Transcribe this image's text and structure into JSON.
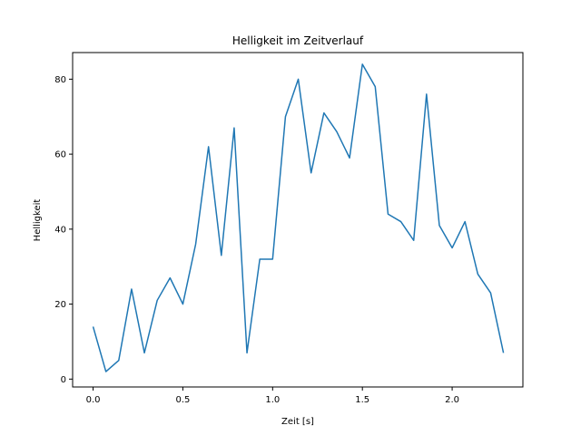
{
  "chart_data": {
    "type": "line",
    "title": "Helligkeit im Zeitverlauf",
    "xlabel": "Zeit [s]",
    "ylabel": "Helligkeit",
    "xlim": [
      -0.114,
      2.394
    ],
    "ylim": [
      -2.1,
      87.1
    ],
    "xticks": [
      0.0,
      0.5,
      1.0,
      1.5,
      2.0
    ],
    "xtick_labels": [
      "0.0",
      "0.5",
      "1.0",
      "1.5",
      "2.0"
    ],
    "yticks": [
      0,
      20,
      40,
      60,
      80
    ],
    "ytick_labels": [
      "0",
      "20",
      "40",
      "60",
      "80"
    ],
    "grid": false,
    "series": [
      {
        "color": "#1f77b4",
        "x": [
          0.0,
          0.0714,
          0.1429,
          0.2143,
          0.2857,
          0.3571,
          0.4286,
          0.5,
          0.5714,
          0.6429,
          0.7143,
          0.7857,
          0.8571,
          0.9286,
          1.0,
          1.0714,
          1.1429,
          1.2143,
          1.2857,
          1.3571,
          1.4286,
          1.5,
          1.5714,
          1.6429,
          1.7143,
          1.7857,
          1.8571,
          1.9286,
          2.0,
          2.0714,
          2.1429,
          2.2143,
          2.2857
        ],
        "y": [
          14,
          2,
          5,
          24,
          7,
          21,
          27,
          20,
          36,
          62,
          33,
          67,
          7,
          32,
          32,
          70,
          80,
          55,
          71,
          66,
          59,
          84,
          78,
          44,
          42,
          37,
          76,
          41,
          35,
          42,
          28,
          23,
          7
        ]
      }
    ]
  }
}
